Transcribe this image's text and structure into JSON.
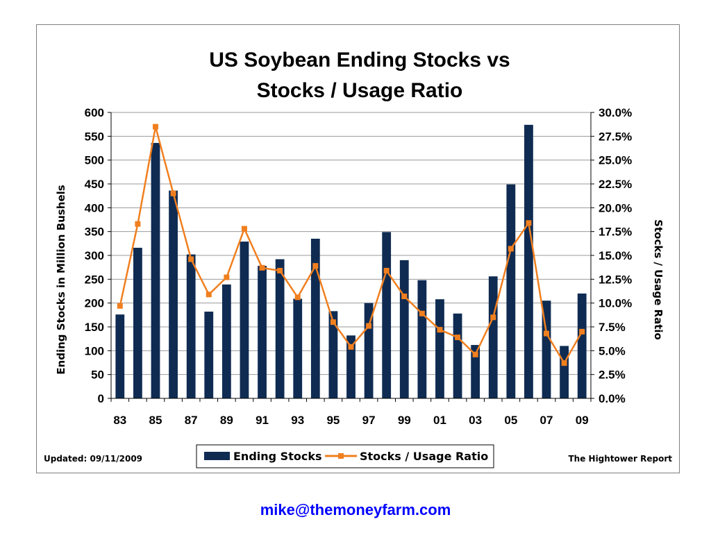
{
  "chart_data": {
    "type": "bar",
    "title_lines": [
      "US Soybean Ending Stocks vs",
      "Stocks / Usage Ratio"
    ],
    "ylabel": "Ending Stocks in Million Bushels",
    "y2label": "Stocks / Usage Ratio",
    "ylim": [
      0,
      600
    ],
    "y_ticks": [
      "0",
      "50",
      "100",
      "150",
      "200",
      "250",
      "300",
      "350",
      "400",
      "450",
      "500",
      "550",
      "600"
    ],
    "y2lim": [
      0,
      30
    ],
    "y2_ticks": [
      "0.0%",
      "2.5%",
      "5.0%",
      "7.5%",
      "10.0%",
      "12.5%",
      "15.0%",
      "17.5%",
      "20.0%",
      "22.5%",
      "25.0%",
      "27.5%",
      "30.0%"
    ],
    "categories": [
      "83",
      "84",
      "85",
      "86",
      "87",
      "88",
      "89",
      "90",
      "91",
      "92",
      "93",
      "94",
      "95",
      "96",
      "97",
      "98",
      "99",
      "00",
      "01",
      "02",
      "03",
      "04",
      "05",
      "06",
      "07",
      "08",
      "09"
    ],
    "x_tick_labels": [
      "83",
      "85",
      "87",
      "89",
      "91",
      "93",
      "95",
      "97",
      "99",
      "01",
      "03",
      "05",
      "07",
      "09"
    ],
    "grid": true,
    "legend_position": "bottom",
    "series": [
      {
        "name": "Ending Stocks",
        "type": "bar",
        "axis": "left",
        "color": "#0f2b52",
        "values": [
          176,
          316,
          536,
          436,
          302,
          182,
          239,
          329,
          278,
          292,
          209,
          335,
          183,
          132,
          200,
          349,
          290,
          248,
          208,
          178,
          112,
          256,
          449,
          574,
          205,
          110,
          220
        ]
      },
      {
        "name": "Stocks / Usage Ratio",
        "type": "line",
        "axis": "right",
        "color": "#f07f1f",
        "values": [
          9.7,
          18.3,
          28.5,
          21.5,
          14.6,
          10.9,
          12.7,
          17.8,
          13.7,
          13.4,
          10.6,
          13.9,
          8.0,
          5.4,
          7.6,
          13.4,
          10.7,
          8.9,
          7.2,
          6.4,
          4.6,
          8.5,
          15.7,
          18.4,
          6.8,
          3.7,
          7.0
        ]
      }
    ]
  },
  "footer": {
    "updated": "Updated: 09/11/2009",
    "source": "The Hightower Report"
  },
  "contact_email": "mike@themoneyfarm.com"
}
